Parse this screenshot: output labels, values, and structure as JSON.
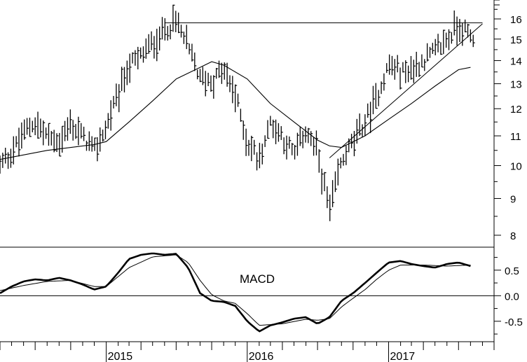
{
  "chart_data": [
    {
      "type": "bar",
      "subtype": "ohlc-weekly",
      "title": "",
      "y_scale": "log",
      "ylim": [
        7.7,
        17
      ],
      "y_ticks": [
        {
          "value": 8,
          "label": "8"
        },
        {
          "value": 9,
          "label": "9"
        },
        {
          "value": 10,
          "label": "10"
        },
        {
          "value": 11,
          "label": "11"
        },
        {
          "value": 12,
          "label": "12"
        },
        {
          "value": 13,
          "label": "13"
        },
        {
          "value": 14,
          "label": "14"
        },
        {
          "value": 15,
          "label": "15"
        },
        {
          "value": 16,
          "label": "16"
        }
      ],
      "x_ticks": [
        {
          "value": "2015-01",
          "label": "2015"
        },
        {
          "value": "2016-01",
          "label": "2016"
        },
        {
          "value": "2017-01",
          "label": "2017"
        }
      ],
      "price_anchors": [
        [
          "2014-04",
          10.0
        ],
        [
          "2014-05",
          10.4
        ],
        [
          "2014-06",
          11.1
        ],
        [
          "2014-07",
          11.5
        ],
        [
          "2014-08",
          11.0
        ],
        [
          "2014-09",
          10.8
        ],
        [
          "2014-10",
          11.4
        ],
        [
          "2014-11",
          11.0
        ],
        [
          "2014-12",
          10.5
        ],
        [
          "2015-01",
          11.3
        ],
        [
          "2015-02",
          12.6
        ],
        [
          "2015-03",
          13.8
        ],
        [
          "2015-04",
          14.2
        ],
        [
          "2015-05",
          14.8
        ],
        [
          "2015-06",
          15.4
        ],
        [
          "2015-07",
          15.9
        ],
        [
          "2015-08",
          14.6
        ],
        [
          "2015-09",
          13.2
        ],
        [
          "2015-10",
          13.1
        ],
        [
          "2015-11",
          13.6
        ],
        [
          "2015-12",
          12.5
        ],
        [
          "2016-01",
          10.8
        ],
        [
          "2016-02",
          10.2
        ],
        [
          "2016-03",
          11.5
        ],
        [
          "2016-04",
          11.0
        ],
        [
          "2016-05",
          10.3
        ],
        [
          "2016-06",
          11.2
        ],
        [
          "2016-07",
          10.4
        ],
        [
          "2016-08",
          8.6
        ],
        [
          "2016-09",
          10.1
        ],
        [
          "2016-10",
          10.8
        ],
        [
          "2016-11",
          11.5
        ],
        [
          "2016-12",
          12.4
        ],
        [
          "2017-01",
          13.8
        ],
        [
          "2017-02",
          13.5
        ],
        [
          "2017-03",
          13.6
        ],
        [
          "2017-04",
          14.0
        ],
        [
          "2017-05",
          14.4
        ],
        [
          "2017-06",
          15.0
        ],
        [
          "2017-07",
          15.7
        ],
        [
          "2017-08",
          15.1
        ]
      ],
      "moving_average": [
        [
          "2014-04",
          10.2
        ],
        [
          "2014-08",
          10.5
        ],
        [
          "2014-12",
          10.7
        ],
        [
          "2015-01",
          10.8
        ],
        [
          "2015-03",
          11.5
        ],
        [
          "2015-05",
          12.3
        ],
        [
          "2015-07",
          13.2
        ],
        [
          "2015-09",
          13.7
        ],
        [
          "2015-10",
          13.95
        ],
        [
          "2015-11",
          13.8
        ],
        [
          "2016-01",
          13.2
        ],
        [
          "2016-03",
          12.2
        ],
        [
          "2016-05",
          11.5
        ],
        [
          "2016-07",
          10.85
        ],
        [
          "2016-08",
          10.65
        ],
        [
          "2016-09",
          10.6
        ],
        [
          "2016-11",
          11.0
        ],
        [
          "2017-01",
          11.6
        ],
        [
          "2017-03",
          12.2
        ],
        [
          "2017-05",
          12.9
        ],
        [
          "2017-07",
          13.6
        ],
        [
          "2017-08",
          13.7
        ]
      ],
      "resistance_line": {
        "from": [
          "2015-06",
          15.8
        ],
        "to": [
          "2017-09",
          15.8
        ]
      },
      "support_trendline": {
        "from": [
          "2016-08",
          10.25
        ],
        "to": [
          "2017-09",
          15.75
        ]
      }
    },
    {
      "type": "line",
      "label": "MACD",
      "ylim": [
        -0.9,
        0.95
      ],
      "y_ticks": [
        {
          "value": 0.5,
          "label": "0.5"
        },
        {
          "value": 0.0,
          "label": "0.0"
        },
        {
          "value": -0.5,
          "label": "-0.5"
        }
      ],
      "zero_line": 0,
      "macd": [
        [
          "2014-04",
          0.05
        ],
        [
          "2014-05",
          0.18
        ],
        [
          "2014-06",
          0.28
        ],
        [
          "2014-07",
          0.32
        ],
        [
          "2014-08",
          0.3
        ],
        [
          "2014-09",
          0.35
        ],
        [
          "2014-10",
          0.3
        ],
        [
          "2014-11",
          0.22
        ],
        [
          "2014-12",
          0.12
        ],
        [
          "2015-01",
          0.18
        ],
        [
          "2015-02",
          0.45
        ],
        [
          "2015-03",
          0.72
        ],
        [
          "2015-04",
          0.8
        ],
        [
          "2015-05",
          0.83
        ],
        [
          "2015-06",
          0.8
        ],
        [
          "2015-07",
          0.82
        ],
        [
          "2015-08",
          0.55
        ],
        [
          "2015-09",
          0.05
        ],
        [
          "2015-10",
          -0.1
        ],
        [
          "2015-11",
          -0.12
        ],
        [
          "2015-12",
          -0.2
        ],
        [
          "2016-01",
          -0.5
        ],
        [
          "2016-02",
          -0.7
        ],
        [
          "2016-03",
          -0.58
        ],
        [
          "2016-04",
          -0.52
        ],
        [
          "2016-05",
          -0.45
        ],
        [
          "2016-06",
          -0.42
        ],
        [
          "2016-07",
          -0.55
        ],
        [
          "2016-08",
          -0.42
        ],
        [
          "2016-09",
          -0.1
        ],
        [
          "2016-10",
          0.05
        ],
        [
          "2016-11",
          0.25
        ],
        [
          "2016-12",
          0.45
        ],
        [
          "2017-01",
          0.65
        ],
        [
          "2017-02",
          0.68
        ],
        [
          "2017-03",
          0.62
        ],
        [
          "2017-04",
          0.58
        ],
        [
          "2017-05",
          0.55
        ],
        [
          "2017-06",
          0.62
        ],
        [
          "2017-07",
          0.65
        ],
        [
          "2017-08",
          0.58
        ]
      ],
      "signal": [
        [
          "2014-04",
          0.1
        ],
        [
          "2014-06",
          0.2
        ],
        [
          "2014-08",
          0.28
        ],
        [
          "2014-10",
          0.3
        ],
        [
          "2014-12",
          0.18
        ],
        [
          "2015-01",
          0.18
        ],
        [
          "2015-03",
          0.55
        ],
        [
          "2015-05",
          0.76
        ],
        [
          "2015-07",
          0.8
        ],
        [
          "2015-08",
          0.65
        ],
        [
          "2015-09",
          0.3
        ],
        [
          "2015-10",
          0.02
        ],
        [
          "2015-11",
          -0.1
        ],
        [
          "2015-12",
          -0.15
        ],
        [
          "2016-01",
          -0.35
        ],
        [
          "2016-02",
          -0.58
        ],
        [
          "2016-04",
          -0.55
        ],
        [
          "2016-06",
          -0.46
        ],
        [
          "2016-07",
          -0.48
        ],
        [
          "2016-08",
          -0.45
        ],
        [
          "2016-09",
          -0.22
        ],
        [
          "2016-10",
          -0.05
        ],
        [
          "2016-11",
          0.12
        ],
        [
          "2016-12",
          0.32
        ],
        [
          "2017-01",
          0.5
        ],
        [
          "2017-02",
          0.6
        ],
        [
          "2017-04",
          0.6
        ],
        [
          "2017-06",
          0.58
        ],
        [
          "2017-08",
          0.6
        ]
      ]
    }
  ]
}
